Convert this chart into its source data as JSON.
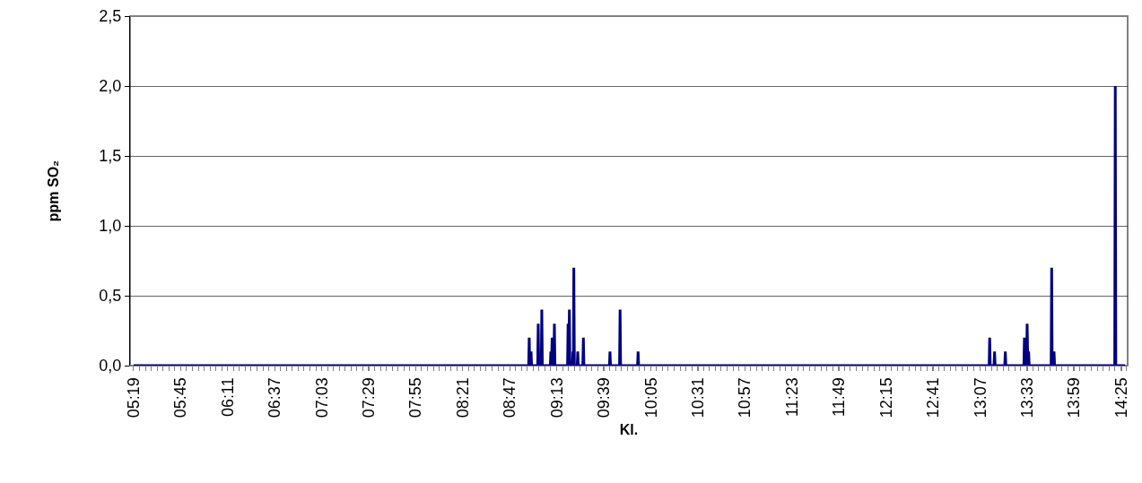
{
  "chart_data": {
    "type": "line",
    "xlabel": "Kl.",
    "ylabel": "ppm SO₂",
    "color": "#000080",
    "line_style": "solid",
    "marker": "none",
    "grid": "y",
    "xlim": [
      5.284,
      14.474
    ],
    "xticks": [
      {
        "value": 5.317,
        "label": "05:19"
      },
      {
        "value": 5.75,
        "label": "05:45"
      },
      {
        "value": 6.183,
        "label": "06:11"
      },
      {
        "value": 6.617,
        "label": "06:37"
      },
      {
        "value": 7.05,
        "label": "07:03"
      },
      {
        "value": 7.483,
        "label": "07:29"
      },
      {
        "value": 7.917,
        "label": "07:55"
      },
      {
        "value": 8.35,
        "label": "08:21"
      },
      {
        "value": 8.783,
        "label": "08:47"
      },
      {
        "value": 9.217,
        "label": "09:13"
      },
      {
        "value": 9.65,
        "label": "09:39"
      },
      {
        "value": 10.083,
        "label": "10:05"
      },
      {
        "value": 10.517,
        "label": "10:31"
      },
      {
        "value": 10.95,
        "label": "10:57"
      },
      {
        "value": 11.383,
        "label": "11:23"
      },
      {
        "value": 11.817,
        "label": "11:49"
      },
      {
        "value": 12.25,
        "label": "12:15"
      },
      {
        "value": 12.683,
        "label": "12:41"
      },
      {
        "value": 13.117,
        "label": "13:07"
      },
      {
        "value": 13.55,
        "label": "13:33"
      },
      {
        "value": 13.983,
        "label": "13:59"
      },
      {
        "value": 14.417,
        "label": "14:25"
      }
    ],
    "ylim": [
      0,
      2.5
    ],
    "yticks": [
      {
        "value": 0,
        "label": "0,0"
      },
      {
        "value": 0.5,
        "label": "0,5"
      },
      {
        "value": 1,
        "label": "1,0"
      },
      {
        "value": 1.5,
        "label": "1,5"
      },
      {
        "value": 2,
        "label": "2,0"
      },
      {
        "value": 2.5,
        "label": "2,5"
      }
    ],
    "x": [
      5.317,
      8.956,
      8.961,
      8.966,
      8.973,
      8.978,
      8.983,
      9.039,
      9.044,
      9.049,
      9.072,
      9.077,
      9.082,
      9.155,
      9.16,
      9.166,
      9.172,
      9.178,
      9.188,
      9.193,
      9.198,
      9.314,
      9.319,
      9.325,
      9.331,
      9.336,
      9.359,
      9.364,
      9.368,
      9.372,
      9.377,
      9.403,
      9.408,
      9.413,
      9.455,
      9.46,
      9.465,
      9.7,
      9.705,
      9.71,
      9.793,
      9.798,
      9.803,
      9.959,
      9.964,
      9.969,
      13.198,
      13.203,
      13.208,
      13.243,
      13.248,
      13.253,
      13.342,
      13.347,
      13.352,
      13.518,
      13.523,
      13.528,
      13.543,
      13.548,
      13.555,
      13.562,
      13.567,
      13.769,
      13.774,
      13.779,
      13.791,
      13.796,
      13.801,
      14.355,
      14.36,
      14.365,
      14.45
    ],
    "values": [
      0,
      0,
      0.2,
      0,
      0,
      0.1,
      0,
      0,
      0.3,
      0,
      0,
      0.4,
      0,
      0,
      0.1,
      0,
      0.2,
      0,
      0,
      0.3,
      0,
      0,
      0.3,
      0,
      0.4,
      0,
      0,
      0.1,
      0,
      0.7,
      0,
      0,
      0.1,
      0,
      0,
      0.2,
      0,
      0,
      0.1,
      0,
      0,
      0.4,
      0,
      0,
      0.1,
      0,
      0,
      0.2,
      0,
      0,
      0.1,
      0,
      0,
      0.1,
      0,
      0,
      0.2,
      0,
      0,
      0.3,
      0,
      0.1,
      0,
      0,
      0.7,
      0,
      0,
      0.1,
      0,
      0,
      2.0,
      0,
      0
    ]
  }
}
